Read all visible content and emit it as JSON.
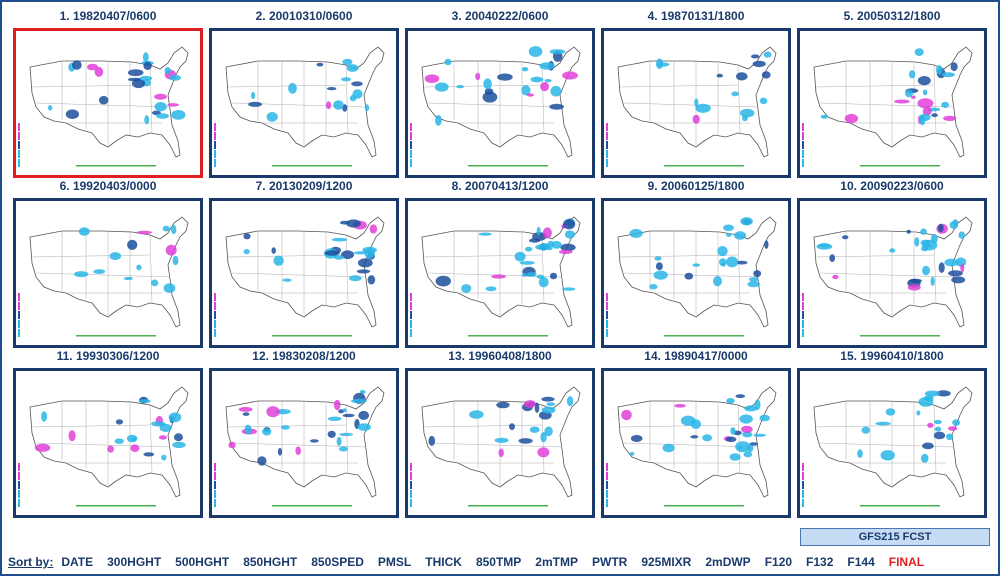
{
  "panels": [
    {
      "label": "1. 19820407/0600",
      "selected": true
    },
    {
      "label": "2. 20010310/0600",
      "selected": false
    },
    {
      "label": "3. 20040222/0600",
      "selected": false
    },
    {
      "label": "4. 19870131/1800",
      "selected": false
    },
    {
      "label": "5. 20050312/1800",
      "selected": false
    },
    {
      "label": "6. 19920403/0000",
      "selected": false
    },
    {
      "label": "7. 20130209/1200",
      "selected": false
    },
    {
      "label": "8. 20070413/1200",
      "selected": false
    },
    {
      "label": "9. 20060125/1800",
      "selected": false
    },
    {
      "label": "10. 20090223/0600",
      "selected": false
    },
    {
      "label": "11. 19930306/1200",
      "selected": false
    },
    {
      "label": "12. 19830208/1200",
      "selected": false
    },
    {
      "label": "13. 19960408/1800",
      "selected": false
    },
    {
      "label": "14. 19890417/0000",
      "selected": false
    },
    {
      "label": "15. 19960410/1800",
      "selected": false
    }
  ],
  "forecast_label": "GFS215 FCST",
  "sort": {
    "label": "Sort by:",
    "options": [
      "DATE",
      "300HGHT",
      "500HGHT",
      "850HGHT",
      "850SPED",
      "PMSL",
      "THICK",
      "850TMP",
      "2mTMP",
      "PWTR",
      "925MIXR",
      "2mDWP",
      "F120",
      "F132",
      "F144",
      "FINAL"
    ],
    "active": "FINAL"
  },
  "colors": {
    "frame": "#1f4e8c",
    "title_text": "#1a3a6b",
    "selected_border": "#e02020",
    "precip_light": "#29b6e8",
    "precip_mid": "#1c4f9c",
    "precip_heavy": "#e040d8",
    "forecast_box": "#c6dcf4"
  }
}
